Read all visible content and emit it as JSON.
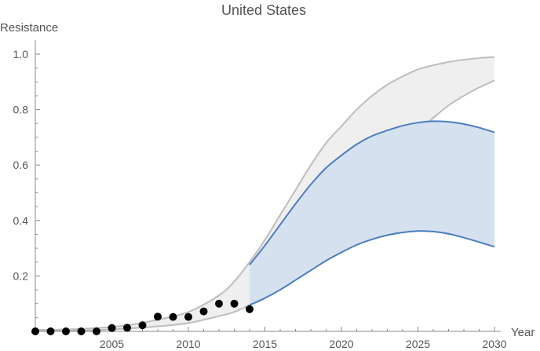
{
  "chart_data": {
    "type": "line",
    "title": "United States",
    "xlabel": "Year",
    "ylabel": "Resistance",
    "xlim": [
      2000,
      2030
    ],
    "ylim": [
      0,
      1.05
    ],
    "x_ticks": [
      "2005",
      "2010",
      "2015",
      "2020",
      "2025",
      "2030"
    ],
    "y_ticks": [
      "0.2",
      "0.4",
      "0.6",
      "0.8",
      "1.0"
    ],
    "grid": false,
    "legend": "none",
    "colors": {
      "gray_band_fill": "#efefef",
      "gray_band_line": "#bdbdbd",
      "blue_band_fill": "#d6e1f0",
      "blue_band_line": "#4a7ebf",
      "points": "#000000",
      "axis": "#888888",
      "text": "#555555"
    },
    "observed": {
      "x": [
        2000,
        2001,
        2002,
        2003,
        2004,
        2005,
        2006,
        2007,
        2008,
        2009,
        2010,
        2011,
        2012,
        2013,
        2014
      ],
      "y": [
        0.0,
        0.0,
        0.0,
        0.0,
        0.0,
        0.012,
        0.013,
        0.022,
        0.053,
        0.052,
        0.052,
        0.072,
        0.1,
        0.1,
        0.08
      ]
    },
    "gray_band": {
      "x": [
        2000,
        2002,
        2004,
        2006,
        2008,
        2010,
        2012,
        2013,
        2014,
        2015,
        2016,
        2017,
        2018,
        2019,
        2020,
        2021,
        2022,
        2023,
        2024,
        2025,
        2026,
        2027,
        2028,
        2029,
        2030
      ],
      "upper": [
        0.005,
        0.007,
        0.012,
        0.022,
        0.042,
        0.07,
        0.13,
        0.18,
        0.25,
        0.33,
        0.42,
        0.51,
        0.6,
        0.68,
        0.74,
        0.8,
        0.85,
        0.89,
        0.92,
        0.945,
        0.96,
        0.972,
        0.98,
        0.986,
        0.99
      ],
      "lower": [
        0.002,
        0.003,
        0.005,
        0.01,
        0.018,
        0.03,
        0.055,
        0.07,
        0.095,
        0.12,
        0.16,
        0.21,
        0.26,
        0.32,
        0.39,
        0.46,
        0.53,
        0.6,
        0.66,
        0.72,
        0.77,
        0.815,
        0.85,
        0.88,
        0.905
      ]
    },
    "blue_band": {
      "x": [
        2014,
        2015,
        2016,
        2017,
        2018,
        2019,
        2020,
        2021,
        2022,
        2023,
        2024,
        2025,
        2026,
        2027,
        2028,
        2029,
        2030
      ],
      "upper": [
        0.24,
        0.31,
        0.385,
        0.46,
        0.53,
        0.59,
        0.635,
        0.675,
        0.705,
        0.725,
        0.742,
        0.753,
        0.758,
        0.756,
        0.748,
        0.735,
        0.718
      ],
      "lower": [
        0.095,
        0.12,
        0.15,
        0.185,
        0.22,
        0.255,
        0.285,
        0.312,
        0.332,
        0.347,
        0.357,
        0.362,
        0.36,
        0.352,
        0.338,
        0.322,
        0.305
      ]
    }
  }
}
